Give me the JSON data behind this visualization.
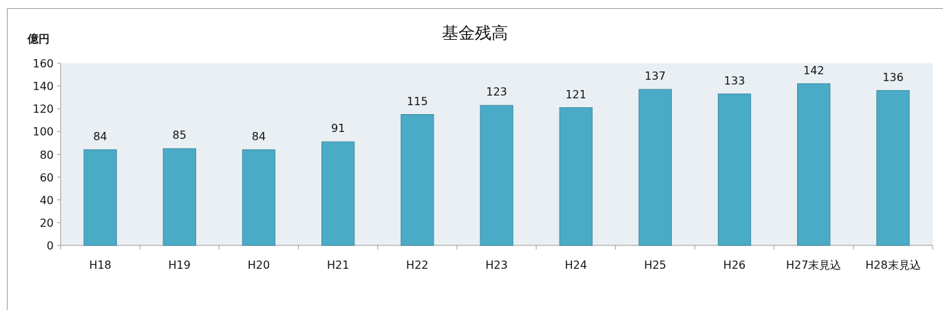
{
  "chart_data": {
    "type": "bar",
    "title": "基金残高",
    "ylabel": "億円",
    "categories": [
      "H18",
      "H19",
      "H20",
      "H21",
      "H22",
      "H23",
      "H24",
      "H25",
      "H26",
      "H27末見込",
      "H28末見込"
    ],
    "values": [
      84,
      85,
      84,
      91,
      115,
      123,
      121,
      137,
      133,
      142,
      136
    ],
    "color": "#4aabc6",
    "ylim": [
      0,
      160
    ],
    "yticks": [
      0,
      20,
      40,
      60,
      80,
      100,
      120,
      140,
      160
    ],
    "data_labels": true
  }
}
